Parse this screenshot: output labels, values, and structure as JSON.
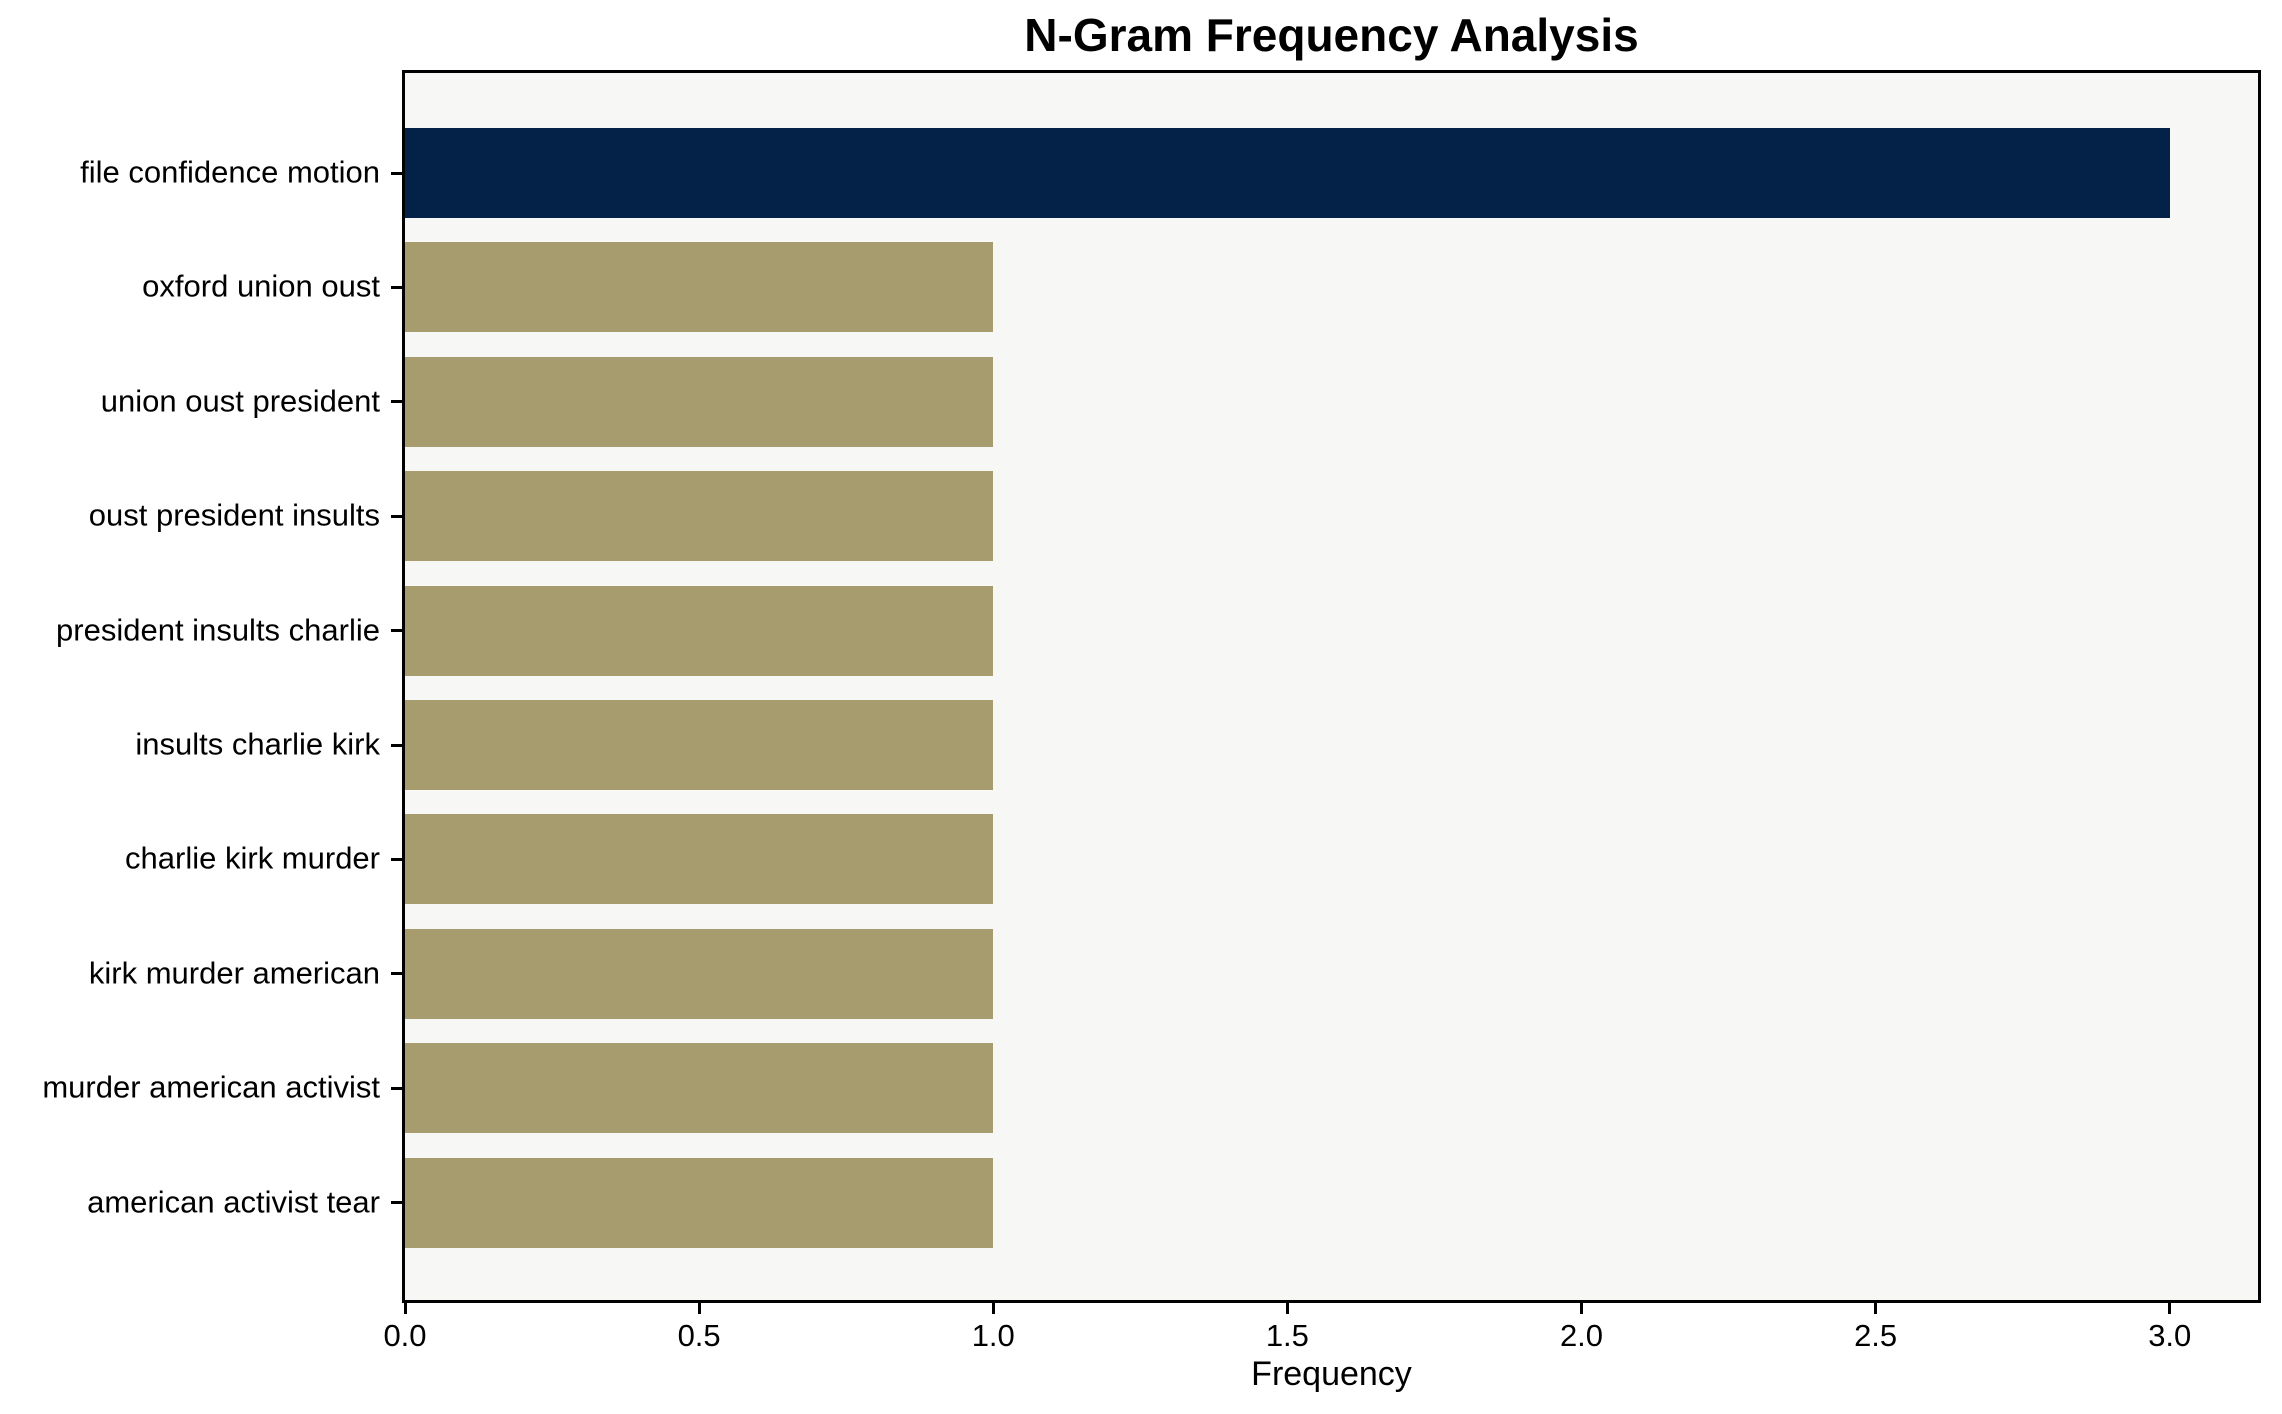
{
  "chart_data": {
    "type": "bar",
    "orientation": "horizontal",
    "title": "N-Gram Frequency Analysis",
    "xlabel": "Frequency",
    "ylabel": "",
    "categories": [
      "file confidence motion",
      "oxford union oust",
      "union oust president",
      "oust president insults",
      "president insults charlie",
      "insults charlie kirk",
      "charlie kirk murder",
      "kirk murder american",
      "murder american activist",
      "american activist tear"
    ],
    "values": [
      3,
      1,
      1,
      1,
      1,
      1,
      1,
      1,
      1,
      1
    ],
    "bar_colors": [
      "#042248",
      "#a69c6e",
      "#a69c6e",
      "#a69c6e",
      "#a69c6e",
      "#a69c6e",
      "#a69c6e",
      "#a69c6e",
      "#a69c6e",
      "#a69c6e"
    ],
    "xlim": [
      0,
      3.15
    ],
    "xticks": [
      0.0,
      0.5,
      1.0,
      1.5,
      2.0,
      2.5,
      3.0
    ],
    "xtick_labels": [
      "0.0",
      "0.5",
      "1.0",
      "1.5",
      "2.0",
      "2.5",
      "3.0"
    ],
    "grid": false,
    "legend": null,
    "colors": {
      "highlight_bar": "#042248",
      "default_bar": "#a69c6e",
      "plot_background": "#f7f7f6",
      "figure_background": "#ffffff",
      "axis_border": "#000000",
      "text": "#000000"
    }
  }
}
